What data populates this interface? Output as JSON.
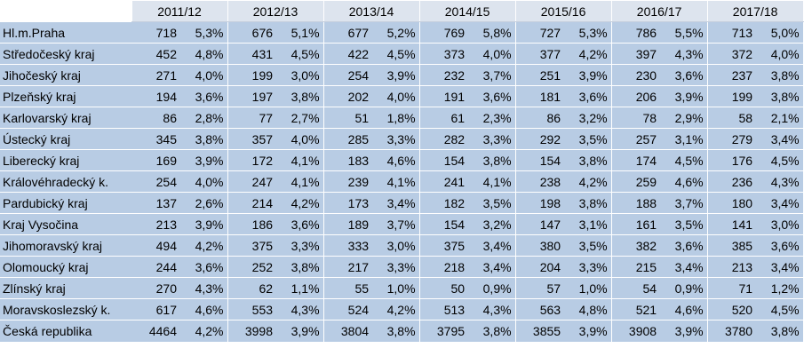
{
  "columns": [
    "2011/12",
    "2012/13",
    "2013/14",
    "2014/15",
    "2015/16",
    "2016/17",
    "2017/18"
  ],
  "rows": [
    {
      "region": "Hl.m.Praha",
      "values": [
        [
          "718",
          "5,3%"
        ],
        [
          "676",
          "5,1%"
        ],
        [
          "677",
          "5,2%"
        ],
        [
          "769",
          "5,8%"
        ],
        [
          "727",
          "5,3%"
        ],
        [
          "786",
          "5,5%"
        ],
        [
          "713",
          "5,0%"
        ]
      ]
    },
    {
      "region": "Středočeský kraj",
      "values": [
        [
          "452",
          "4,8%"
        ],
        [
          "431",
          "4,5%"
        ],
        [
          "422",
          "4,5%"
        ],
        [
          "373",
          "4,0%"
        ],
        [
          "377",
          "4,2%"
        ],
        [
          "397",
          "4,3%"
        ],
        [
          "372",
          "4,0%"
        ]
      ]
    },
    {
      "region": "Jihočeský kraj",
      "values": [
        [
          "271",
          "4,0%"
        ],
        [
          "199",
          "3,0%"
        ],
        [
          "254",
          "3,9%"
        ],
        [
          "232",
          "3,7%"
        ],
        [
          "251",
          "3,9%"
        ],
        [
          "230",
          "3,6%"
        ],
        [
          "237",
          "3,8%"
        ]
      ]
    },
    {
      "region": "Plzeňský kraj",
      "values": [
        [
          "194",
          "3,6%"
        ],
        [
          "197",
          "3,8%"
        ],
        [
          "202",
          "4,0%"
        ],
        [
          "191",
          "3,6%"
        ],
        [
          "181",
          "3,6%"
        ],
        [
          "206",
          "3,9%"
        ],
        [
          "199",
          "3,8%"
        ]
      ]
    },
    {
      "region": "Karlovarský kraj",
      "values": [
        [
          "86",
          "2,8%"
        ],
        [
          "77",
          "2,7%"
        ],
        [
          "51",
          "1,8%"
        ],
        [
          "61",
          "2,3%"
        ],
        [
          "86",
          "3,2%"
        ],
        [
          "78",
          "2,9%"
        ],
        [
          "58",
          "2,1%"
        ]
      ]
    },
    {
      "region": "Ústecký kraj",
      "values": [
        [
          "345",
          "3,8%"
        ],
        [
          "357",
          "4,0%"
        ],
        [
          "285",
          "3,3%"
        ],
        [
          "282",
          "3,3%"
        ],
        [
          "292",
          "3,5%"
        ],
        [
          "257",
          "3,1%"
        ],
        [
          "279",
          "3,4%"
        ]
      ]
    },
    {
      "region": "Liberecký kraj",
      "values": [
        [
          "169",
          "3,9%"
        ],
        [
          "172",
          "4,1%"
        ],
        [
          "183",
          "4,6%"
        ],
        [
          "154",
          "3,8%"
        ],
        [
          "154",
          "3,8%"
        ],
        [
          "174",
          "4,5%"
        ],
        [
          "176",
          "4,5%"
        ]
      ]
    },
    {
      "region": "Královéhradecký k.",
      "values": [
        [
          "254",
          "4,0%"
        ],
        [
          "247",
          "4,1%"
        ],
        [
          "239",
          "4,1%"
        ],
        [
          "241",
          "4,1%"
        ],
        [
          "238",
          "4,2%"
        ],
        [
          "259",
          "4,6%"
        ],
        [
          "236",
          "4,3%"
        ]
      ]
    },
    {
      "region": "Pardubický kraj",
      "values": [
        [
          "137",
          "2,6%"
        ],
        [
          "214",
          "4,2%"
        ],
        [
          "173",
          "3,4%"
        ],
        [
          "182",
          "3,5%"
        ],
        [
          "198",
          "3,8%"
        ],
        [
          "188",
          "3,7%"
        ],
        [
          "180",
          "3,4%"
        ]
      ]
    },
    {
      "region": "Kraj Vysočina",
      "values": [
        [
          "213",
          "3,9%"
        ],
        [
          "186",
          "3,6%"
        ],
        [
          "189",
          "3,7%"
        ],
        [
          "154",
          "3,2%"
        ],
        [
          "147",
          "3,1%"
        ],
        [
          "161",
          "3,5%"
        ],
        [
          "141",
          "3,0%"
        ]
      ]
    },
    {
      "region": "Jihomoravský kraj",
      "values": [
        [
          "494",
          "4,2%"
        ],
        [
          "375",
          "3,3%"
        ],
        [
          "333",
          "3,0%"
        ],
        [
          "375",
          "3,4%"
        ],
        [
          "380",
          "3,5%"
        ],
        [
          "382",
          "3,6%"
        ],
        [
          "385",
          "3,6%"
        ]
      ]
    },
    {
      "region": "Olomoucký kraj",
      "values": [
        [
          "244",
          "3,6%"
        ],
        [
          "252",
          "3,8%"
        ],
        [
          "217",
          "3,3%"
        ],
        [
          "218",
          "3,4%"
        ],
        [
          "204",
          "3,3%"
        ],
        [
          "215",
          "3,4%"
        ],
        [
          "213",
          "3,4%"
        ]
      ]
    },
    {
      "region": "Zlínský kraj",
      "values": [
        [
          "270",
          "4,3%"
        ],
        [
          "62",
          "1,1%"
        ],
        [
          "55",
          "1,0%"
        ],
        [
          "50",
          "0,9%"
        ],
        [
          "57",
          "1,0%"
        ],
        [
          "54",
          "0,9%"
        ],
        [
          "71",
          "1,2%"
        ]
      ]
    },
    {
      "region": "Moravskoslezský k.",
      "values": [
        [
          "617",
          "4,6%"
        ],
        [
          "553",
          "4,3%"
        ],
        [
          "524",
          "4,2%"
        ],
        [
          "513",
          "4,3%"
        ],
        [
          "563",
          "4,8%"
        ],
        [
          "521",
          "4,6%"
        ],
        [
          "520",
          "4,5%"
        ]
      ]
    },
    {
      "region": "Česká republika",
      "values": [
        [
          "4464",
          "4,2%"
        ],
        [
          "3998",
          "3,9%"
        ],
        [
          "3804",
          "3,8%"
        ],
        [
          "3795",
          "3,8%"
        ],
        [
          "3855",
          "3,9%"
        ],
        [
          "3908",
          "3,9%"
        ],
        [
          "3780",
          "3,8%"
        ]
      ]
    }
  ]
}
